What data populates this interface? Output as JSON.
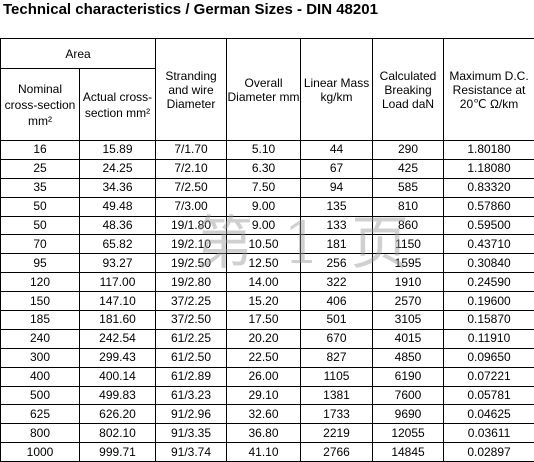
{
  "title": "Technical characteristics / German Sizes - DIN 48201",
  "watermark": "第 1 页",
  "table": {
    "group_header": "Area",
    "headers": [
      "Nominal cross-section mm²",
      "Actual cross-section mm²",
      "Stranding and wire Diameter",
      "Overall Diameter mm",
      "Linear Mass kg/km",
      "Calculated Breaking Load daN",
      "Maximum D.C. Resistance at 20℃ Ω/km"
    ],
    "rows": [
      [
        "16",
        "15.89",
        "7/1.70",
        "5.10",
        "44",
        "290",
        "1.80180"
      ],
      [
        "25",
        "24.25",
        "7/2.10",
        "6.30",
        "67",
        "425",
        "1.18080"
      ],
      [
        "35",
        "34.36",
        "7/2.50",
        "7.50",
        "94",
        "585",
        "0.83320"
      ],
      [
        "50",
        "49.48",
        "7/3.00",
        "9.00",
        "135",
        "810",
        "0.57860"
      ],
      [
        "50",
        "48.36",
        "19/1.80",
        "9.00",
        "133",
        "860",
        "0.59500"
      ],
      [
        "70",
        "65.82",
        "19/2.10",
        "10.50",
        "181",
        "1150",
        "0.43710"
      ],
      [
        "95",
        "93.27",
        "19/2.50",
        "12.50",
        "256",
        "1595",
        "0.30840"
      ],
      [
        "120",
        "117.00",
        "19/2.80",
        "14.00",
        "322",
        "1910",
        "0.24590"
      ],
      [
        "150",
        "147.10",
        "37/2.25",
        "15.20",
        "406",
        "2570",
        "0.19600"
      ],
      [
        "185",
        "181.60",
        "37/2.50",
        "17.50",
        "501",
        "3105",
        "0.15870"
      ],
      [
        "240",
        "242.54",
        "61/2.25",
        "20.20",
        "670",
        "4015",
        "0.11910"
      ],
      [
        "300",
        "299.43",
        "61/2.50",
        "22.50",
        "827",
        "4850",
        "0.09650"
      ],
      [
        "400",
        "400.14",
        "61/2.89",
        "26.00",
        "1105",
        "6190",
        "0.07221"
      ],
      [
        "500",
        "499.83",
        "61/3.23",
        "29.10",
        "1381",
        "7600",
        "0.05781"
      ],
      [
        "625",
        "626.20",
        "91/2.96",
        "32.60",
        "1733",
        "9690",
        "0.04625"
      ],
      [
        "800",
        "802.10",
        "91/3.35",
        "36.80",
        "2219",
        "12055",
        "0.03611"
      ],
      [
        "1000",
        "999.71",
        "91/3.74",
        "41.10",
        "2766",
        "14845",
        "0.02897"
      ]
    ]
  }
}
